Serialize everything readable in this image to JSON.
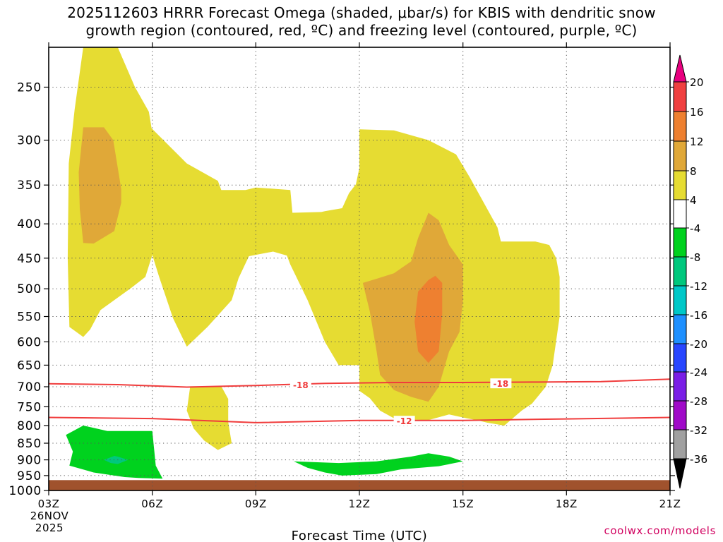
{
  "title_line1": "2025112603 HRRR Forecast Omega (shaded, μbar/s) for KBIS with dendritic snow",
  "title_line2": "growth region (contoured, red, ºC) and freezing level (contoured, purple, ºC)",
  "watermark": "coolwx.com/models",
  "chart_data": {
    "type": "heatmap",
    "xlabel": "Forecast Time (UTC)",
    "x_ticks": [
      "03Z",
      "06Z",
      "09Z",
      "12Z",
      "15Z",
      "18Z",
      "21Z"
    ],
    "x_date_label": [
      "26NOV",
      "2025"
    ],
    "x_range_hours": [
      3,
      21
    ],
    "y_ticks": [
      250,
      300,
      350,
      400,
      450,
      500,
      550,
      600,
      650,
      700,
      750,
      800,
      850,
      900,
      950,
      1000
    ],
    "y_axis": "pressure (hPa), inverted log scale",
    "grid": true,
    "colorbar": {
      "labels": [
        "20",
        "16",
        "12",
        "8",
        "4",
        "-4",
        "-8",
        "-12",
        "-16",
        "-20",
        "-24",
        "-28",
        "-32",
        "-36"
      ],
      "colors": [
        "#e8007f",
        "#f04040",
        "#ee8030",
        "#e0a838",
        "#e6dc32",
        "#ffffff",
        "#00d21e",
        "#00c87d",
        "#00c8c8",
        "#1e90ff",
        "#2846ff",
        "#7a1ee6",
        "#a00ac8",
        "#a0a0a0",
        "#000000"
      ]
    },
    "colors": {
      "surface": "#a0522d",
      "dgz_contour": "#f03c3c",
      "frame": "#000000"
    },
    "contours": [
      {
        "label": "-18",
        "points": [
          [
            3,
            693
          ],
          [
            5,
            695
          ],
          [
            7,
            701
          ],
          [
            9,
            697
          ],
          [
            11,
            692
          ],
          [
            13,
            690
          ],
          [
            15,
            690
          ],
          [
            17,
            689
          ],
          [
            19,
            688
          ],
          [
            21,
            682
          ]
        ]
      },
      {
        "label": "-12",
        "points": [
          [
            3,
            778
          ],
          [
            6,
            781
          ],
          [
            9,
            792
          ],
          [
            12,
            786
          ],
          [
            15,
            786
          ],
          [
            18,
            782
          ],
          [
            21,
            778
          ]
        ]
      }
    ],
    "label_positions": [
      [
        10.3,
        695,
        "-18"
      ],
      [
        16.1,
        692,
        "-18"
      ],
      [
        13.3,
        787,
        "-12"
      ]
    ],
    "omega_regions": [
      {
        "value": "4 to 8",
        "fill": "#e6dc32",
        "points": [
          [
            4,
            218
          ],
          [
            5,
            218
          ],
          [
            5.5,
            250
          ],
          [
            5.9,
            272
          ],
          [
            5.98,
            288
          ],
          [
            7,
            325
          ],
          [
            7.9,
            345
          ],
          [
            8.0,
            356
          ],
          [
            8.7,
            356
          ],
          [
            9,
            353
          ],
          [
            10,
            356
          ],
          [
            10.06,
            385
          ],
          [
            10.9,
            384
          ],
          [
            11,
            383
          ],
          [
            11.5,
            379
          ],
          [
            11.7,
            360
          ],
          [
            11.9,
            349
          ],
          [
            12,
            330
          ],
          [
            12,
            289
          ],
          [
            13,
            290
          ],
          [
            14,
            300
          ],
          [
            14.8,
            315
          ],
          [
            15.2,
            341
          ],
          [
            16,
            405
          ],
          [
            16.1,
            425
          ],
          [
            17.1,
            425
          ],
          [
            17.5,
            430
          ],
          [
            17.7,
            450
          ],
          [
            17.8,
            480
          ],
          [
            17.8,
            550
          ],
          [
            17.6,
            650
          ],
          [
            17.4,
            700
          ],
          [
            17,
            742
          ],
          [
            16.7,
            760
          ],
          [
            16.2,
            800
          ],
          [
            15.7,
            792
          ],
          [
            15.4,
            785
          ],
          [
            15.1,
            780
          ],
          [
            14.6,
            770
          ],
          [
            14,
            785
          ],
          [
            13.6,
            784
          ],
          [
            13,
            780
          ],
          [
            12.6,
            760
          ],
          [
            12.3,
            728
          ],
          [
            12,
            710
          ],
          [
            12,
            650
          ],
          [
            11.4,
            650
          ],
          [
            11,
            600
          ],
          [
            10.5,
            520
          ],
          [
            10,
            460
          ],
          [
            9.9,
            446
          ],
          [
            9.5,
            440
          ],
          [
            8.8,
            447
          ],
          [
            8.5,
            482
          ],
          [
            8.3,
            520
          ],
          [
            7.6,
            570
          ],
          [
            7,
            610
          ],
          [
            6.6,
            553
          ],
          [
            6.2,
            480
          ],
          [
            6,
            445
          ],
          [
            5.8,
            480
          ],
          [
            5.4,
            498
          ],
          [
            4.5,
            538
          ],
          [
            4.2,
            575
          ],
          [
            4.0,
            590
          ],
          [
            3.6,
            570
          ],
          [
            3.55,
            450
          ],
          [
            3.58,
            325
          ],
          [
            3.75,
            270
          ],
          [
            4,
            218
          ]
        ]
      },
      {
        "value": "8 to 12",
        "fill": "#e0a838",
        "points": [
          [
            4,
            287
          ],
          [
            4.3,
            287
          ],
          [
            4.6,
            287
          ],
          [
            4.87,
            300
          ],
          [
            5.1,
            355
          ],
          [
            5.1,
            372
          ],
          [
            4.9,
            410
          ],
          [
            4.3,
            428
          ],
          [
            4,
            427
          ],
          [
            3.9,
            380
          ],
          [
            3.87,
            335
          ],
          [
            4,
            287
          ]
        ]
      },
      {
        "value": "8 to 12",
        "fill": "#e0a838",
        "points": [
          [
            14,
            385
          ],
          [
            14.3,
            395
          ],
          [
            14.6,
            430
          ],
          [
            15.0,
            460
          ],
          [
            15.0,
            520
          ],
          [
            14.9,
            580
          ],
          [
            14.6,
            620
          ],
          [
            14.3,
            700
          ],
          [
            14,
            737
          ],
          [
            13.5,
            725
          ],
          [
            13,
            708
          ],
          [
            12.6,
            672
          ],
          [
            12.5,
            620
          ],
          [
            12.3,
            540
          ],
          [
            12.1,
            490
          ],
          [
            12.5,
            483
          ],
          [
            13,
            474
          ],
          [
            13.5,
            455
          ],
          [
            13.7,
            420
          ],
          [
            14,
            385
          ]
        ]
      },
      {
        "value": "12 to 16",
        "fill": "#ee8030",
        "points": [
          [
            14.2,
            478
          ],
          [
            14.4,
            490
          ],
          [
            14.4,
            545
          ],
          [
            14.3,
            620
          ],
          [
            14,
            645
          ],
          [
            13.7,
            620
          ],
          [
            13.6,
            560
          ],
          [
            13.7,
            505
          ],
          [
            14,
            485
          ],
          [
            14.2,
            478
          ]
        ]
      },
      {
        "value": "4 to 8",
        "fill": "#e6dc32",
        "points": [
          [
            7.1,
            699
          ],
          [
            8,
            699
          ],
          [
            8.2,
            730
          ],
          [
            8.2,
            790
          ],
          [
            8.3,
            850
          ],
          [
            7.9,
            870
          ],
          [
            7.5,
            842
          ],
          [
            7.2,
            808
          ],
          [
            7.0,
            760
          ],
          [
            7.1,
            699
          ]
        ]
      },
      {
        "value": "-4 to -8",
        "fill": "#00d21e",
        "points": [
          [
            3.5,
            826
          ],
          [
            4,
            800
          ],
          [
            4.7,
            815
          ],
          [
            6,
            815
          ],
          [
            6.1,
            918
          ],
          [
            6.3,
            960
          ],
          [
            5.6,
            958
          ],
          [
            5.2,
            955
          ],
          [
            4.3,
            940
          ],
          [
            3.6,
            918
          ],
          [
            3.7,
            875
          ],
          [
            3.5,
            826
          ]
        ]
      },
      {
        "value": "-8 to -12",
        "fill": "#00c87d",
        "points": [
          [
            4.9,
            888
          ],
          [
            5,
            890
          ],
          [
            5.3,
            900
          ],
          [
            5,
            913
          ],
          [
            4.8,
            910
          ],
          [
            4.6,
            900
          ],
          [
            4.9,
            888
          ]
        ]
      },
      {
        "value": "-4 to -8",
        "fill": "#00d21e",
        "points": [
          [
            10.1,
            905
          ],
          [
            11.4,
            910
          ],
          [
            12.5,
            905
          ],
          [
            13.5,
            890
          ],
          [
            14,
            880
          ],
          [
            14.6,
            890
          ],
          [
            15,
            905
          ],
          [
            14.3,
            920
          ],
          [
            13.2,
            930
          ],
          [
            12.5,
            945
          ],
          [
            11.5,
            950
          ],
          [
            11,
            940
          ],
          [
            10.5,
            925
          ],
          [
            10.1,
            905
          ]
        ]
      }
    ]
  }
}
